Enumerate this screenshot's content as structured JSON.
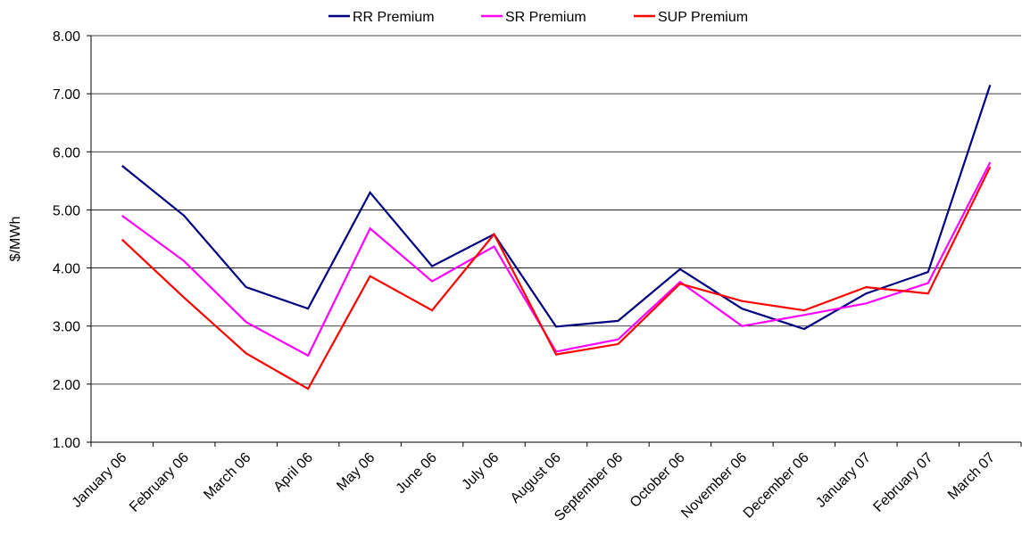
{
  "chart_data": {
    "type": "line",
    "y_label": "$/MWh",
    "categories": [
      "January 06",
      "February 06",
      "March 06",
      "April 06",
      "May 06",
      "June 06",
      "July 06",
      "August 06",
      "September 06",
      "October 06",
      "November 06",
      "December 06",
      "January 07",
      "February 07",
      "March 07"
    ],
    "series": [
      {
        "name": "RR Premium",
        "color": "#000080",
        "values": [
          5.76,
          4.9,
          3.67,
          3.3,
          5.3,
          4.03,
          4.58,
          2.99,
          3.09,
          3.98,
          3.3,
          2.95,
          3.56,
          3.93,
          7.15
        ]
      },
      {
        "name": "SR Premium",
        "color": "#ff00ff",
        "values": [
          4.9,
          4.12,
          3.07,
          2.49,
          4.68,
          3.77,
          4.37,
          2.56,
          2.77,
          3.76,
          3.0,
          3.19,
          3.39,
          3.74,
          5.82
        ]
      },
      {
        "name": "SUP Premium",
        "color": "#ff0000",
        "values": [
          4.49,
          3.49,
          2.53,
          1.92,
          3.86,
          3.27,
          4.58,
          2.51,
          2.69,
          3.73,
          3.43,
          3.27,
          3.67,
          3.56,
          5.74
        ]
      }
    ],
    "ylim": [
      1,
      8
    ],
    "yticks": [
      {
        "value": 1,
        "label": "1.00"
      },
      {
        "value": 2,
        "label": "2.00"
      },
      {
        "value": 3,
        "label": "3.00"
      },
      {
        "value": 4,
        "label": "4.00"
      },
      {
        "value": 5,
        "label": "5.00"
      },
      {
        "value": 6,
        "label": "6.00"
      },
      {
        "value": 7,
        "label": "7.00"
      },
      {
        "value": 8,
        "label": "8.00"
      }
    ],
    "grid": true,
    "legend": "top"
  }
}
